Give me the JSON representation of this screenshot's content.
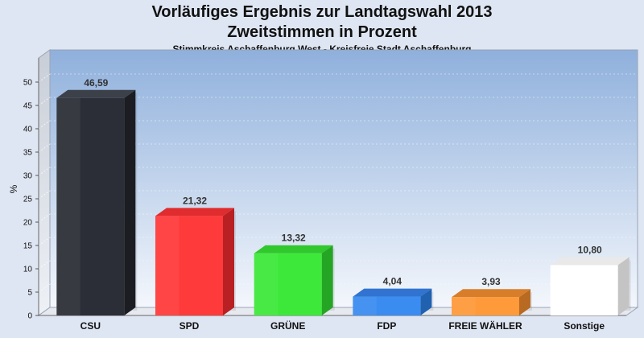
{
  "chart_data": {
    "type": "bar",
    "title": "Vorläufiges Ergebnis zur Landtagswahl 2013",
    "subtitle": "Zweitstimmen in Prozent",
    "subsubtitle": "Stimmkreis Aschaffenburg West - Kreisfreie Stadt Aschaffenburg",
    "ylabel": "%",
    "xlabel": "",
    "ylim": [
      0,
      50
    ],
    "yticks": [
      0,
      5,
      10,
      15,
      20,
      25,
      30,
      35,
      40,
      45,
      50
    ],
    "grid": true,
    "categories": [
      "CSU",
      "SPD",
      "GRÜNE",
      "FDP",
      "FREIE WÄHLER",
      "Sonstige"
    ],
    "values": [
      46.59,
      21.32,
      13.32,
      4.04,
      3.93,
      10.8
    ],
    "value_labels": [
      "46,59",
      "21,32",
      "13,32",
      "4,04",
      "3,93",
      "10,80"
    ],
    "colors": [
      "#2b2e36",
      "#ff3a3a",
      "#3ee83a",
      "#3a8cf0",
      "#ff9a3a",
      "#ffffff"
    ],
    "side_colors": [
      "#1b1d23",
      "#b82024",
      "#25a524",
      "#2061b0",
      "#b86a22",
      "#c4c4c4"
    ],
    "top_colors": [
      "#3c4049",
      "#e02c2e",
      "#30c82d",
      "#3073d0",
      "#d87e2a",
      "#e9e9e9"
    ]
  }
}
